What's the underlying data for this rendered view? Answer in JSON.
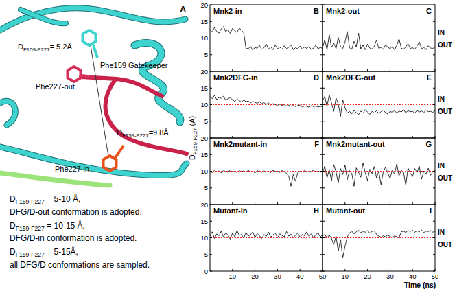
{
  "structure_panel": {
    "panel_label": "A",
    "labels": [
      "Phe159 Gatekeeper",
      {
        "text": "D",
        "sub": "F159-F227",
        "rest": "= 5.2Å"
      },
      "Phe227-out",
      {
        "text": "D",
        "sub": "F159-F227",
        "rest": "=9.8Å"
      },
      "Phe227-in"
    ]
  },
  "criteria": [
    {
      "text": "D",
      "sub": "F159-F227",
      "rest": " = 5-10 Å,"
    },
    {
      "text": "DFG/D-out conformation is adopted."
    },
    {
      "text": "D",
      "sub": "F159-F227",
      "rest": " = 10-15 Å,"
    },
    {
      "text": "DFG/D-in conformation is adopted."
    },
    {
      "text": "D",
      "sub": "F159-F227",
      "rest": " = 5-15Å,"
    },
    {
      "text": "all DFG/D conformations are sampled."
    }
  ],
  "shared_axes": {
    "xlabel": "Time (ns)",
    "ylabel": {
      "text": "D",
      "sub": "F159-F227",
      "rest": " (A)"
    }
  },
  "chart_data": [
    {
      "type": "line",
      "panel": "B",
      "title": "Mnk2-in",
      "x": [
        0,
        1,
        2,
        3,
        4,
        5,
        6,
        7,
        8,
        9,
        10,
        11,
        12,
        13,
        14,
        15,
        16,
        17,
        18,
        19,
        20,
        21,
        22,
        23,
        24,
        25,
        26,
        27,
        28,
        29,
        30,
        31,
        32,
        33,
        34,
        35,
        36,
        37,
        38,
        39,
        40,
        41,
        42,
        43,
        44,
        45,
        46,
        47,
        48,
        49,
        50
      ],
      "series": [
        {
          "color": "#000000",
          "values": [
            12.5,
            11.8,
            13.2,
            12.0,
            11.5,
            12.8,
            13.5,
            11.9,
            12.6,
            11.4,
            12.9,
            12.2,
            11.7,
            13.0,
            12.4,
            11.6,
            7.0,
            6.8,
            7.5,
            6.4,
            7.2,
            6.9,
            7.8,
            6.6,
            7.1,
            8.2,
            6.7,
            7.4,
            6.5,
            7.9,
            6.8,
            7.3,
            6.6,
            7.7,
            6.9,
            7.2,
            8.0,
            6.5,
            7.1,
            6.8,
            7.6,
            6.7,
            7.3,
            6.9,
            7.5,
            6.6,
            7.0,
            7.8,
            6.8,
            7.2,
            6.9
          ]
        }
      ],
      "xlim": [
        0,
        50
      ],
      "ylim": [
        0,
        20
      ],
      "xticks": [
        10,
        20,
        30,
        40,
        50
      ],
      "yticks": [
        5,
        10,
        15,
        20
      ],
      "tick_labels": "y",
      "reference_line": 10
    },
    {
      "type": "line",
      "panel": "C",
      "title": "Mnk2-out",
      "x": [
        0,
        1,
        2,
        3,
        4,
        5,
        6,
        7,
        8,
        9,
        10,
        11,
        12,
        13,
        14,
        15,
        16,
        17,
        18,
        19,
        20,
        21,
        22,
        23,
        24,
        25,
        26,
        27,
        28,
        29,
        30,
        31,
        32,
        33,
        34,
        35,
        36,
        37,
        38,
        39,
        40,
        41,
        42,
        43,
        44,
        45,
        46,
        47,
        48,
        49,
        50
      ],
      "series": [
        {
          "color": "#000000",
          "values": [
            7.0,
            9.5,
            6.5,
            11.0,
            7.2,
            8.5,
            6.8,
            10.2,
            7.5,
            6.9,
            8.8,
            12.0,
            7.1,
            6.6,
            9.0,
            7.4,
            11.5,
            6.8,
            7.9,
            6.5,
            8.2,
            7.0,
            6.7,
            7.6,
            9.4,
            6.9,
            7.2,
            6.6,
            8.0,
            7.3,
            6.8,
            7.5,
            6.5,
            7.8,
            9.8,
            7.0,
            6.6,
            7.4,
            8.3,
            6.9,
            7.1,
            6.7,
            7.6,
            8.9,
            6.8,
            7.2,
            6.5,
            7.7,
            7.0,
            6.9,
            7.3
          ]
        }
      ],
      "xlim": [
        0,
        50
      ],
      "ylim": [
        0,
        20
      ],
      "xticks": [
        10,
        20,
        30,
        40,
        50
      ],
      "yticks": [
        5,
        10,
        15,
        20
      ],
      "tick_labels": false,
      "reference_line": 10,
      "region_labels": [
        "IN",
        "OUT"
      ]
    },
    {
      "type": "line",
      "panel": "D",
      "title": "Mnk2DFG-in",
      "x": [
        0,
        1,
        2,
        3,
        4,
        5,
        6,
        7,
        8,
        9,
        10,
        11,
        12,
        13,
        14,
        15,
        16,
        17,
        18,
        19,
        20,
        21,
        22,
        23,
        24,
        25,
        26,
        27,
        28,
        29,
        30,
        31,
        32,
        33,
        34,
        35,
        36,
        37,
        38,
        39,
        40,
        41,
        42,
        43,
        44,
        45,
        46,
        47,
        48,
        49,
        50
      ],
      "series": [
        {
          "color": "#000000",
          "values": [
            12.5,
            11.8,
            12.8,
            11.5,
            12.2,
            11.9,
            12.6,
            11.3,
            11.8,
            12.1,
            11.5,
            11.0,
            11.7,
            11.2,
            10.8,
            11.4,
            10.9,
            11.1,
            10.5,
            11.0,
            10.7,
            10.4,
            10.9,
            10.3,
            10.6,
            10.1,
            10.5,
            9.9,
            10.3,
            10.0,
            9.8,
            10.2,
            9.7,
            10.0,
            9.6,
            9.9,
            9.5,
            9.8,
            9.4,
            9.7,
            9.9,
            9.3,
            9.6,
            9.5,
            9.2,
            9.7,
            9.4,
            9.6,
            9.3,
            9.5,
            9.4
          ]
        }
      ],
      "xlim": [
        0,
        50
      ],
      "ylim": [
        0,
        20
      ],
      "xticks": [
        10,
        20,
        30,
        40,
        50
      ],
      "yticks": [
        5,
        10,
        15,
        20
      ],
      "tick_labels": "y",
      "reference_line": 10
    },
    {
      "type": "line",
      "panel": "E",
      "title": "Mnk2DFG-out",
      "x": [
        0,
        1,
        2,
        3,
        4,
        5,
        6,
        7,
        8,
        9,
        10,
        11,
        12,
        13,
        14,
        15,
        16,
        17,
        18,
        19,
        20,
        21,
        22,
        23,
        24,
        25,
        26,
        27,
        28,
        29,
        30,
        31,
        32,
        33,
        34,
        35,
        36,
        37,
        38,
        39,
        40,
        41,
        42,
        43,
        44,
        45,
        46,
        47,
        48,
        49,
        50
      ],
      "series": [
        {
          "color": "#000000",
          "values": [
            11.0,
            12.5,
            9.5,
            13.0,
            10.5,
            8.0,
            12.0,
            10.2,
            6.5,
            11.5,
            9.0,
            7.5,
            8.0,
            7.2,
            8.3,
            7.6,
            7.0,
            8.1,
            7.4,
            8.5,
            7.8,
            7.1,
            8.0,
            7.5,
            8.2,
            7.3,
            7.9,
            8.4,
            7.6,
            7.2,
            8.0,
            7.7,
            8.3,
            7.4,
            8.1,
            7.8,
            8.5,
            7.6,
            8.2,
            7.9,
            8.0,
            7.5,
            8.3,
            7.8,
            8.1,
            7.6,
            8.4,
            7.9,
            8.0,
            7.7,
            8.2
          ]
        }
      ],
      "xlim": [
        0,
        50
      ],
      "ylim": [
        0,
        20
      ],
      "xticks": [
        10,
        20,
        30,
        40,
        50
      ],
      "yticks": [
        5,
        10,
        15,
        20
      ],
      "tick_labels": false,
      "reference_line": 10,
      "region_labels": [
        "IN",
        "OUT"
      ]
    },
    {
      "type": "line",
      "panel": "F",
      "title": "Mnk2mutant-in",
      "x": [
        0,
        1,
        2,
        3,
        4,
        5,
        6,
        7,
        8,
        9,
        10,
        11,
        12,
        13,
        14,
        15,
        16,
        17,
        18,
        19,
        20,
        21,
        22,
        23,
        24,
        25,
        26,
        27,
        28,
        29,
        30,
        31,
        32,
        33,
        34,
        35,
        36,
        37,
        38,
        39,
        40,
        41,
        42,
        43,
        44,
        45,
        46,
        47,
        48,
        49,
        50
      ],
      "series": [
        {
          "color": "#000000",
          "values": [
            10.0,
            9.6,
            10.3,
            9.8,
            10.1,
            9.5,
            10.2,
            9.9,
            9.7,
            10.4,
            9.8,
            10.0,
            9.6,
            10.2,
            9.9,
            10.1,
            9.7,
            10.3,
            9.8,
            10.0,
            9.5,
            10.2,
            9.9,
            9.7,
            10.1,
            9.8,
            10.0,
            9.6,
            10.3,
            9.9,
            10.0,
            9.7,
            10.2,
            9.8,
            9.4,
            8.5,
            5.5,
            9.0,
            7.0,
            9.6,
            10.0,
            9.8,
            10.2,
            9.7,
            10.0,
            9.9,
            10.3,
            9.8,
            10.1,
            9.7,
            10.0
          ]
        }
      ],
      "xlim": [
        0,
        50
      ],
      "ylim": [
        0,
        20
      ],
      "xticks": [
        10,
        20,
        30,
        40,
        50
      ],
      "yticks": [
        5,
        10,
        15,
        20
      ],
      "tick_labels": "y",
      "reference_line": 10
    },
    {
      "type": "line",
      "panel": "G",
      "title": "Mnk2mutant-out",
      "x": [
        0,
        1,
        2,
        3,
        4,
        5,
        6,
        7,
        8,
        9,
        10,
        11,
        12,
        13,
        14,
        15,
        16,
        17,
        18,
        19,
        20,
        21,
        22,
        23,
        24,
        25,
        26,
        27,
        28,
        29,
        30,
        31,
        32,
        33,
        34,
        35,
        36,
        37,
        38,
        39,
        40,
        41,
        42,
        43,
        44,
        45,
        46,
        47,
        48,
        49,
        50
      ],
      "series": [
        {
          "color": "#000000",
          "values": [
            9.5,
            11.5,
            8.0,
            10.5,
            7.0,
            12.0,
            9.8,
            6.5,
            10.8,
            9.0,
            11.8,
            7.5,
            10.2,
            9.4,
            5.5,
            11.0,
            9.7,
            8.2,
            12.5,
            9.6,
            7.2,
            10.6,
            9.3,
            11.4,
            8.0,
            10.0,
            6.0,
            9.8,
            11.2,
            9.5,
            7.8,
            10.4,
            9.1,
            12.2,
            8.6,
            10.3,
            9.7,
            5.8,
            11.0,
            9.4,
            8.4,
            10.8,
            9.6,
            11.5,
            7.6,
            10.1,
            9.2,
            10.9,
            8.8,
            9.9,
            10.2
          ]
        }
      ],
      "xlim": [
        0,
        50
      ],
      "ylim": [
        0,
        20
      ],
      "xticks": [
        10,
        20,
        30,
        40,
        50
      ],
      "yticks": [
        5,
        10,
        15,
        20
      ],
      "tick_labels": false,
      "reference_line": 10,
      "region_labels": [
        "IN",
        "OUT"
      ]
    },
    {
      "type": "line",
      "panel": "H",
      "title": "Mutant-in",
      "x": [
        0,
        1,
        2,
        3,
        4,
        5,
        6,
        7,
        8,
        9,
        10,
        11,
        12,
        13,
        14,
        15,
        16,
        17,
        18,
        19,
        20,
        21,
        22,
        23,
        24,
        25,
        26,
        27,
        28,
        29,
        30,
        31,
        32,
        33,
        34,
        35,
        36,
        37,
        38,
        39,
        40,
        41,
        42,
        43,
        44,
        45,
        46,
        47,
        48,
        49,
        50
      ],
      "series": [
        {
          "color": "#000000",
          "values": [
            10.5,
            11.8,
            9.8,
            11.2,
            10.6,
            12.0,
            10.2,
            11.5,
            10.8,
            9.6,
            11.4,
            10.3,
            12.2,
            10.7,
            11.0,
            9.9,
            11.6,
            10.5,
            10.9,
            11.8,
            10.1,
            11.3,
            10.6,
            9.8,
            11.0,
            10.4,
            11.7,
            10.2,
            10.9,
            11.5,
            10.0,
            11.2,
            10.7,
            10.3,
            11.9,
            10.5,
            11.1,
            9.9,
            10.8,
            11.4,
            10.2,
            11.0,
            10.6,
            11.8,
            10.4,
            11.2,
            10.0,
            10.9,
            11.5,
            10.3,
            10.8
          ]
        }
      ],
      "xlim": [
        0,
        50
      ],
      "ylim": [
        0,
        20
      ],
      "xticks": [
        10,
        20,
        30,
        40,
        50
      ],
      "yticks": [
        0,
        5,
        10,
        15,
        20
      ],
      "tick_labels": true,
      "reference_line": 10
    },
    {
      "type": "line",
      "panel": "I",
      "title": "Mutant-out",
      "x": [
        0,
        1,
        2,
        3,
        4,
        5,
        6,
        7,
        8,
        9,
        10,
        11,
        12,
        13,
        14,
        15,
        16,
        17,
        18,
        19,
        20,
        21,
        22,
        23,
        24,
        25,
        26,
        27,
        28,
        29,
        30,
        31,
        32,
        33,
        34,
        35,
        36,
        37,
        38,
        39,
        40,
        41,
        42,
        43,
        44,
        45,
        46,
        47,
        48,
        49,
        50
      ],
      "series": [
        {
          "color": "#000000",
          "values": [
            10.5,
            11.0,
            10.0,
            10.8,
            9.8,
            8.0,
            10.5,
            6.0,
            9.5,
            4.0,
            7.5,
            10.2,
            11.5,
            12.0,
            11.2,
            11.8,
            12.3,
            11.5,
            12.0,
            11.7,
            12.2,
            11.4,
            11.9,
            12.1,
            11.0,
            10.5,
            10.2,
            10.6,
            10.3,
            10.8,
            10.4,
            10.1,
            10.6,
            10.3,
            10.0,
            11.8,
            12.0,
            11.6,
            12.2,
            11.9,
            12.3,
            11.7,
            12.1,
            11.8,
            12.4,
            11.6,
            12.0,
            11.9,
            12.2,
            11.7,
            12.0
          ]
        }
      ],
      "xlim": [
        0,
        50
      ],
      "ylim": [
        0,
        20
      ],
      "xticks": [
        10,
        20,
        30,
        40,
        50
      ],
      "yticks": [
        0,
        5,
        10,
        15,
        20
      ],
      "tick_labels": "x",
      "reference_line": 10,
      "region_labels": [
        "IN",
        "OUT"
      ]
    }
  ]
}
